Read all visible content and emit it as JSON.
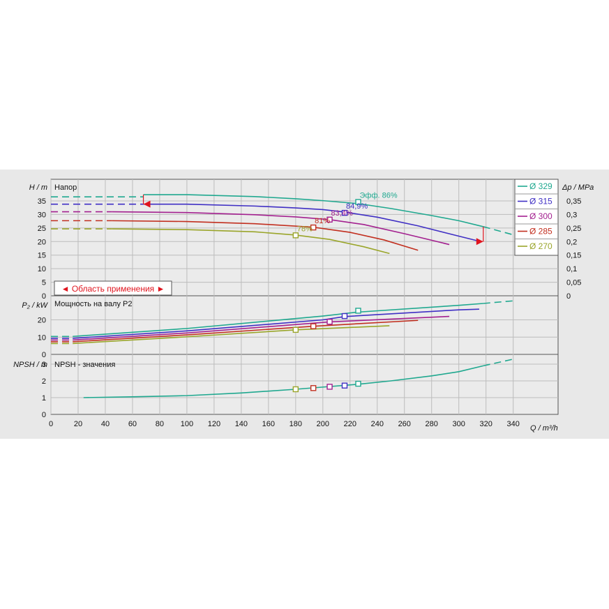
{
  "colors": {
    "background": "#e8e8e8",
    "plot_bg": "#ebebeb",
    "grid": "#bcbcbc",
    "d329": "#1fa88f",
    "d315": "#3f2fc4",
    "d300": "#a3208f",
    "d285": "#c22f1f",
    "d270": "#9aa52a",
    "range_marker": "#e0141e"
  },
  "chart_data": [
    {
      "type": "line",
      "title": "Напор",
      "ylabel": "H / m",
      "ylabel_right": "Δp / MPa",
      "xlim": [
        0,
        350
      ],
      "ylim": [
        0,
        40
      ],
      "yticks": [
        0,
        5,
        10,
        15,
        20,
        25,
        30,
        35
      ],
      "yticks_right": [
        "0",
        "0,05",
        "0,1",
        "0,15",
        "0,2",
        "0,25",
        "0,3",
        "0,35"
      ],
      "grid": true,
      "legend_placement": "right",
      "series": [
        {
          "name": "Ø 329",
          "key": "d329",
          "dash_x": [
            0,
            68
          ],
          "dash_y": [
            36.5,
            36.5
          ],
          "x": [
            68,
            100,
            150,
            180,
            200,
            226,
            250,
            280,
            300,
            318
          ],
          "y": [
            37.3,
            37.3,
            36.6,
            35.8,
            35.1,
            34.0,
            32.2,
            29.6,
            27.7,
            25.5
          ],
          "tail_x": [
            318,
            340
          ],
          "tail_y": [
            25.5,
            22.5
          ]
        },
        {
          "name": "Ø 315",
          "key": "d315",
          "dash_x": [
            0,
            68
          ],
          "dash_y": [
            33.8,
            33.8
          ],
          "x": [
            68,
            100,
            150,
            180,
            200,
            216,
            240,
            270,
            300,
            316
          ],
          "y": [
            33.8,
            33.8,
            33.1,
            32.4,
            31.8,
            30.9,
            29.0,
            25.8,
            22.0,
            20.0
          ]
        },
        {
          "name": "Ø 300",
          "key": "d300",
          "dash_x": [
            0,
            45
          ],
          "dash_y": [
            31.0,
            31.0
          ],
          "x": [
            45,
            100,
            150,
            180,
            205,
            230,
            260,
            293
          ],
          "y": [
            31.0,
            30.7,
            29.9,
            29.1,
            28.1,
            26.3,
            22.9,
            18.9
          ]
        },
        {
          "name": "Ø 285",
          "key": "d285",
          "dash_x": [
            0,
            45
          ],
          "dash_y": [
            27.7,
            27.7
          ],
          "x": [
            45,
            100,
            150,
            193,
            220,
            245,
            270
          ],
          "y": [
            27.7,
            27.4,
            26.6,
            25.3,
            23.4,
            20.6,
            16.8
          ]
        },
        {
          "name": "Ø 270",
          "key": "d270",
          "dash_x": [
            0,
            45
          ],
          "dash_y": [
            24.7,
            24.7
          ],
          "x": [
            45,
            100,
            150,
            180,
            205,
            230,
            249
          ],
          "y": [
            24.7,
            24.4,
            23.6,
            22.4,
            20.8,
            18.1,
            15.6
          ]
        }
      ],
      "operating_points": [
        {
          "key": "d329",
          "x": 226,
          "y": 34.6,
          "label": "Эфф.  86%"
        },
        {
          "key": "d315",
          "x": 216,
          "y": 30.6,
          "label": "84,9%"
        },
        {
          "key": "d300",
          "x": 205,
          "y": 28.1,
          "label": "83,4%"
        },
        {
          "key": "d285",
          "x": 193,
          "y": 25.2,
          "label": "81%"
        },
        {
          "key": "d270",
          "x": 180,
          "y": 22.3,
          "label": "78%"
        }
      ],
      "range_label": "◄ Область применения ►",
      "range_q": [
        68,
        318
      ]
    },
    {
      "type": "line",
      "title": "Мощность на валу P2",
      "ylabel": "P₂ / kW",
      "xlim": [
        0,
        350
      ],
      "ylim": [
        0,
        30
      ],
      "yticks": [
        0,
        10,
        20
      ],
      "grid": true,
      "series": [
        {
          "name": "Ø 329",
          "key": "d329",
          "x": [
            16,
            100,
            200,
            226,
            300,
            318
          ],
          "y": [
            10.4,
            15.0,
            22.2,
            24.5,
            28.4,
            29.5
          ],
          "tail_x": [
            318,
            340
          ],
          "tail_y": [
            29.5,
            31.0
          ],
          "dash_x": [
            0,
            16
          ],
          "dash_y": [
            10.4,
            10.4
          ]
        },
        {
          "name": "Ø 315",
          "key": "d315",
          "x": [
            16,
            100,
            200,
            216,
            300,
            315
          ],
          "y": [
            9.3,
            13.6,
            20.0,
            21.9,
            25.8,
            26.2
          ],
          "dash_x": [
            0,
            16
          ],
          "dash_y": [
            9.3,
            9.3
          ]
        },
        {
          "name": "Ø 300",
          "key": "d300",
          "x": [
            16,
            100,
            205,
            293
          ],
          "y": [
            8.3,
            12.4,
            18.8,
            22.0
          ],
          "dash_x": [
            0,
            16
          ],
          "dash_y": [
            8.3,
            8.3
          ]
        },
        {
          "name": "Ø 285",
          "key": "d285",
          "x": [
            16,
            100,
            193,
            270
          ],
          "y": [
            7.3,
            11.3,
            16.3,
            19.7
          ],
          "dash_x": [
            0,
            16
          ],
          "dash_y": [
            7.3,
            7.3
          ]
        },
        {
          "name": "Ø 270",
          "key": "d270",
          "x": [
            16,
            100,
            180,
            249
          ],
          "y": [
            6.3,
            10.2,
            14.2,
            16.6
          ],
          "dash_x": [
            0,
            16
          ],
          "dash_y": [
            6.3,
            6.3
          ]
        }
      ],
      "operating_points": [
        {
          "key": "d329",
          "x": 226,
          "y": 25.3
        },
        {
          "key": "d315",
          "x": 216,
          "y": 22.2
        },
        {
          "key": "d300",
          "x": 205,
          "y": 18.9
        },
        {
          "key": "d285",
          "x": 193,
          "y": 16.3
        },
        {
          "key": "d270",
          "x": 180,
          "y": 14.2
        }
      ]
    },
    {
      "type": "line",
      "title": "NPSH - значения",
      "ylabel": "NPSH / m",
      "xlabel": "Q / m³/h",
      "xlim": [
        0,
        350
      ],
      "xticks": [
        0,
        20,
        40,
        60,
        80,
        100,
        120,
        140,
        160,
        180,
        200,
        220,
        240,
        260,
        280,
        300,
        320,
        340
      ],
      "ylim": [
        0,
        3.5
      ],
      "yticks": [
        0,
        1,
        2,
        3
      ],
      "grid": true,
      "series": [
        {
          "name": "NPSH",
          "key": "d329",
          "x": [
            24,
            60,
            100,
            140,
            180,
            200,
            226,
            250,
            280,
            300,
            318
          ],
          "y": [
            1.0,
            1.05,
            1.12,
            1.28,
            1.5,
            1.63,
            1.8,
            2.0,
            2.3,
            2.55,
            2.9
          ],
          "tail_x": [
            318,
            340
          ],
          "tail_y": [
            2.9,
            3.3
          ]
        }
      ],
      "operating_points": [
        {
          "key": "d329",
          "x": 226,
          "y": 1.83
        },
        {
          "key": "d315",
          "x": 216,
          "y": 1.72
        },
        {
          "key": "d300",
          "x": 205,
          "y": 1.65
        },
        {
          "key": "d285",
          "x": 193,
          "y": 1.57
        },
        {
          "key": "d270",
          "x": 180,
          "y": 1.5
        }
      ]
    }
  ]
}
